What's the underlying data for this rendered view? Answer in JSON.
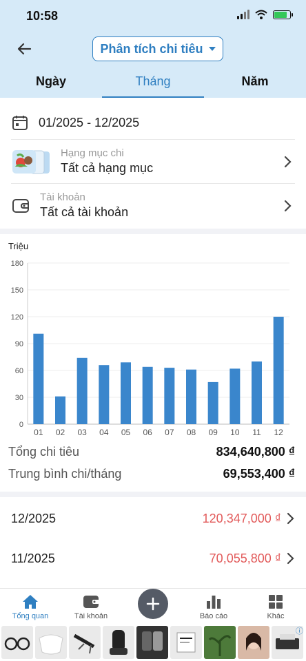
{
  "status": {
    "time": "10:58"
  },
  "header": {
    "title": "Phân tích chi tiêu"
  },
  "tabs": [
    {
      "label": "Ngày",
      "active": false
    },
    {
      "label": "Tháng",
      "active": true
    },
    {
      "label": "Năm",
      "active": false
    }
  ],
  "filters": {
    "date_range": "01/2025 - 12/2025",
    "category_label": "Hạng mục chi",
    "category_value": "Tất cả hạng mục",
    "account_label": "Tài khoản",
    "account_value": "Tất cả tài khoản"
  },
  "chart_data": {
    "type": "bar",
    "ylabel": "Triệu",
    "categories": [
      "01",
      "02",
      "03",
      "04",
      "05",
      "06",
      "07",
      "08",
      "09",
      "10",
      "11",
      "12"
    ],
    "values": [
      101,
      31,
      74,
      66,
      69,
      64,
      63,
      61,
      47,
      62,
      70,
      120
    ],
    "yticks": [
      0,
      30,
      60,
      90,
      120,
      150,
      180
    ],
    "ylim": [
      0,
      180
    ],
    "color": "#3a86cc"
  },
  "summary": {
    "total_label": "Tổng chi tiêu",
    "total_value": "834,640,800 ₫",
    "avg_label": "Trung bình chi/tháng",
    "avg_value": "69,553,400 ₫"
  },
  "list": [
    {
      "month": "12/2025",
      "amount": "120,347,000 ₫"
    },
    {
      "month": "11/2025",
      "amount": "70,055,800 ₫"
    }
  ],
  "nav": {
    "overview": "Tổng quan",
    "accounts": "Tài khoản",
    "reports": "Báo cáo",
    "more": "Khác"
  },
  "icons": [
    "back-arrow-icon",
    "calendar-icon",
    "category-icon",
    "wallet-icon",
    "chevron-right-icon",
    "home-icon",
    "plus-icon",
    "bar-chart-icon",
    "grid-icon"
  ]
}
